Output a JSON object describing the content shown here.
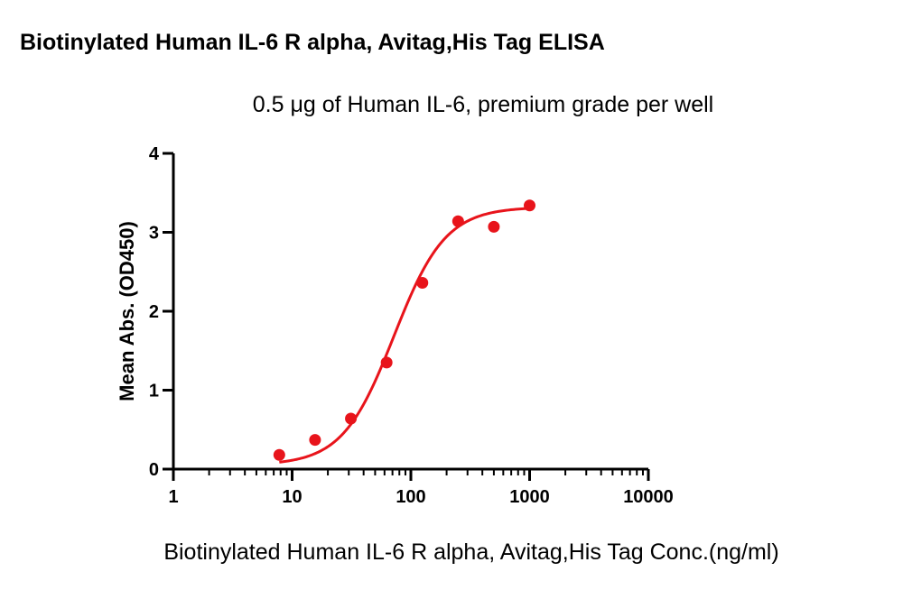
{
  "chart_data": {
    "type": "scatter",
    "title": "Biotinylated Human IL-6 R alpha, Avitag,His Tag ELISA",
    "subtitle": "0.5 μg of Human IL-6, premium grade per well",
    "xlabel": "Biotinylated Human IL-6 R alpha, Avitag,His Tag Conc.(ng/ml)",
    "ylabel": "Mean Abs. (OD450)",
    "x_scale": "log",
    "xlim": [
      1,
      10000
    ],
    "ylim": [
      0,
      4
    ],
    "x_tick_labels": [
      "1",
      "10",
      "100",
      "1000",
      "10000"
    ],
    "x_tick_values": [
      1,
      10,
      100,
      1000,
      10000
    ],
    "y_tick_labels": [
      "0",
      "1",
      "2",
      "3",
      "4"
    ],
    "y_tick_values": [
      0,
      1,
      2,
      3,
      4
    ],
    "grid": false,
    "legend": "none",
    "series": [
      {
        "x": [
          7.8,
          15.6,
          31.25,
          62.5,
          125,
          250,
          500,
          1000
        ],
        "y": [
          0.18,
          0.37,
          0.64,
          1.35,
          2.36,
          3.14,
          3.07,
          3.34
        ],
        "fit": "4PL",
        "fit_params": {
          "bottom": 0.05,
          "top": 3.32,
          "ec50": 72,
          "hill": 2.0
        }
      }
    ],
    "color": "#e8141b"
  }
}
